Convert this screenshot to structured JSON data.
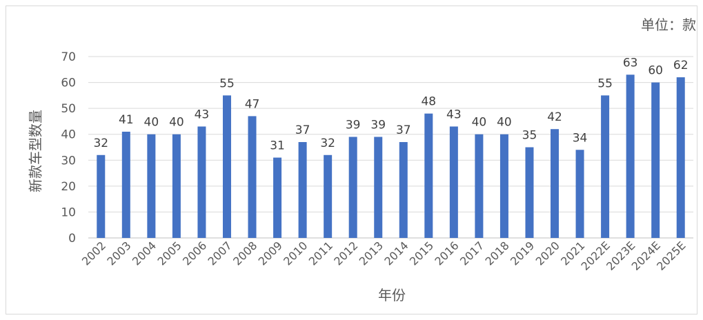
{
  "chart_data": {
    "type": "bar",
    "title": "",
    "unit_label": "单位：款",
    "xlabel": "年份",
    "ylabel": "新款车型数量",
    "ylim": [
      0,
      70
    ],
    "yticks": [
      0,
      10,
      20,
      30,
      40,
      50,
      60,
      70
    ],
    "grid": true,
    "legend": "none",
    "bar_color": "#4472C4",
    "categories": [
      "2002",
      "2003",
      "2004",
      "2005",
      "2006",
      "2007",
      "2008",
      "2009",
      "2010",
      "2011",
      "2012",
      "2013",
      "2014",
      "2015",
      "2016",
      "2017",
      "2018",
      "2019",
      "2020",
      "2021",
      "2022E",
      "2023E",
      "2024E",
      "2025E"
    ],
    "values": [
      32,
      41,
      40,
      40,
      43,
      55,
      47,
      31,
      37,
      32,
      39,
      39,
      37,
      48,
      43,
      40,
      40,
      35,
      42,
      34,
      55,
      63,
      60,
      62
    ],
    "data_labels": [
      "32",
      "41",
      "40",
      "40",
      "43",
      "55",
      "47",
      "31",
      "37",
      "32",
      "39",
      "39",
      "37",
      "48",
      "43",
      "40",
      "40",
      "35",
      "42",
      "34",
      "55",
      "63",
      "60",
      "62"
    ]
  }
}
